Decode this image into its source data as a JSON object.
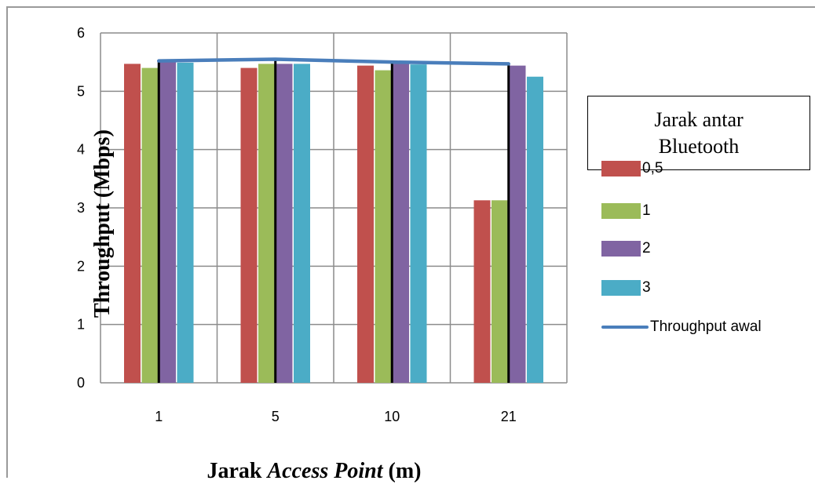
{
  "chart_data": {
    "type": "bar",
    "categories": [
      "1",
      "5",
      "10",
      "21"
    ],
    "series": [
      {
        "name": "0,5",
        "color": "#c0504d",
        "values": [
          5.47,
          5.4,
          5.44,
          3.13
        ]
      },
      {
        "name": "1",
        "color": "#9bbb59",
        "values": [
          5.4,
          5.47,
          5.36,
          3.13
        ]
      },
      {
        "name": "2",
        "color": "#8064a2",
        "values": [
          5.5,
          5.47,
          5.47,
          5.44
        ]
      },
      {
        "name": "3",
        "color": "#4bacc6",
        "values": [
          5.49,
          5.47,
          5.46,
          5.25
        ]
      }
    ],
    "line_series": {
      "name": "Throughput awal",
      "color": "#4a7ebb",
      "values": [
        5.52,
        5.55,
        5.5,
        5.47
      ]
    },
    "xlabel": "Jarak Access Point (m)",
    "xlabel_plain": "Jarak ",
    "xlabel_italic": "Access Point",
    "xlabel_suffix": " (m)",
    "ylabel": "Throughput (Mbps)",
    "ylim": [
      0,
      6
    ],
    "yticks": [
      "0",
      "1",
      "2",
      "3",
      "4",
      "5",
      "6"
    ],
    "grid": true,
    "legend": {
      "title": "Jarak antar Bluetooth",
      "placement": "right"
    }
  }
}
